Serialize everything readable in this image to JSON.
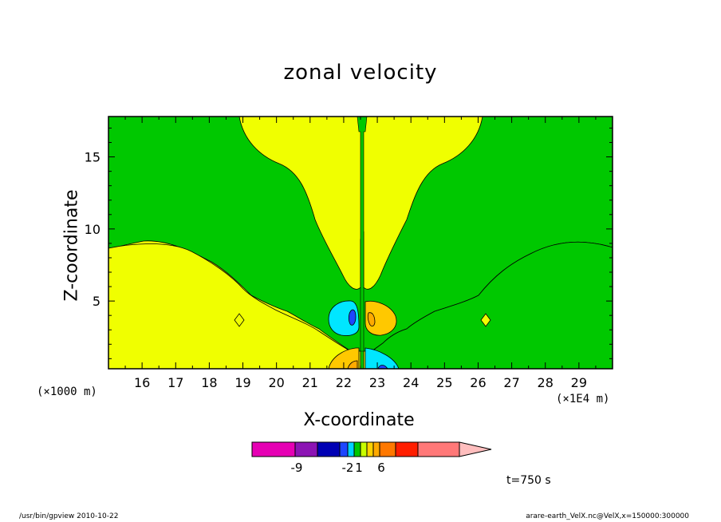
{
  "chart_data": {
    "type": "heatmap",
    "title": "zonal velocity",
    "xlabel": "X-coordinate",
    "ylabel": "Z-coordinate",
    "x_unit_left": "(×1000 m)",
    "x_unit_right": "(×1E4 m)",
    "xlim": [
      15.0,
      30.0
    ],
    "ylim": [
      0.3,
      17.8
    ],
    "x_ticks": [
      16,
      17,
      18,
      19,
      20,
      21,
      22,
      23,
      24,
      25,
      26,
      27,
      28,
      29
    ],
    "y_ticks": [
      5,
      10,
      15
    ],
    "colorbar": {
      "colors": [
        "#e600b4",
        "#8c14b4",
        "#0000b4",
        "#1e46ff",
        "#00d2ff",
        "#00c800",
        "#c8ff00",
        "#ffd200",
        "#ffaa00",
        "#ff7800",
        "#ff1e00",
        "#ff7878",
        "#ffbebe"
      ],
      "labels": [
        "-9",
        "-2",
        "1",
        "6"
      ]
    },
    "contour_levels_shown": [
      "-2",
      "-1",
      "0",
      "1",
      "2"
    ],
    "time_label": "t=750 s"
  },
  "footer": {
    "left": "/usr/bin/gpview   2010-10-22",
    "right": "arare-earth_VelX.nc@VelX,x=150000:300000"
  }
}
